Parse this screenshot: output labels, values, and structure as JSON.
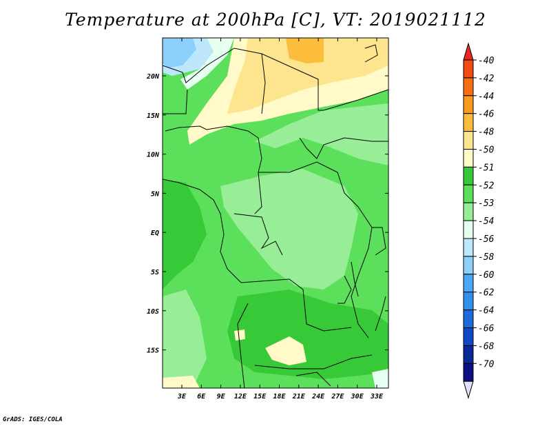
{
  "title": "Temperature at 200hPa [C], VT: 2019021112",
  "credit": "GrADS: IGES/COLA",
  "map": {
    "y_ticks": [
      "20N",
      "15N",
      "10N",
      "5N",
      "EQ",
      "5S",
      "10S",
      "15S"
    ],
    "x_ticks": [
      "3E",
      "6E",
      "9E",
      "12E",
      "15E",
      "18E",
      "21E",
      "24E",
      "27E",
      "30E",
      "33E"
    ]
  },
  "colorbar": {
    "labels": [
      "-40",
      "-42",
      "-44",
      "-46",
      "-48",
      "-50",
      "-51",
      "-52",
      "-53",
      "-54",
      "-56",
      "-58",
      "-60",
      "-62",
      "-64",
      "-66",
      "-68",
      "-70"
    ],
    "colors": [
      "#e8281e",
      "#f14a14",
      "#f76f10",
      "#fb9a1e",
      "#fcbd3c",
      "#fde58f",
      "#fffac8",
      "#37c937",
      "#5ce05c",
      "#97ee97",
      "#e6fff0",
      "#bfe7fb",
      "#8ccffb",
      "#4aa7f5",
      "#3290ea",
      "#1e6cd9",
      "#1148c5",
      "#0a2a9a",
      "#0d1080",
      "#e0e0fa"
    ]
  },
  "chart_data": {
    "type": "heatmap",
    "title": "Temperature at 200hPa [C], VT: 2019021112",
    "xlabel": "",
    "ylabel": "",
    "lon_range": [
      0,
      35
    ],
    "lat_range": [
      -20,
      24
    ],
    "levels": [
      -70,
      -68,
      -66,
      -64,
      -62,
      -60,
      -58,
      -56,
      -54,
      -53,
      -52,
      -51,
      -50,
      -48,
      -46,
      -44,
      -42,
      -40
    ],
    "regions": [
      {
        "level": -56,
        "lon": [
          0,
          6
        ],
        "lat": [
          19,
          24
        ]
      },
      {
        "level": -54,
        "lon": [
          2,
          9
        ],
        "lat": [
          12,
          22
        ]
      },
      {
        "level": -50,
        "lon": [
          8,
          35
        ],
        "lat": [
          12,
          24
        ]
      },
      {
        "level": -48,
        "lon": [
          18,
          25
        ],
        "lat": [
          21,
          24
        ]
      },
      {
        "level": -53,
        "lon": [
          0,
          35
        ],
        "lat": [
          -20,
          12
        ]
      },
      {
        "level": -52,
        "lon": [
          12,
          33
        ],
        "lat": [
          -19,
          -7
        ]
      },
      {
        "level": -54,
        "lon": [
          18,
          29
        ],
        "lat": [
          -6,
          8
        ]
      },
      {
        "level": -51,
        "lon": [
          17,
          22
        ],
        "lat": [
          -18,
          -16
        ]
      }
    ]
  }
}
